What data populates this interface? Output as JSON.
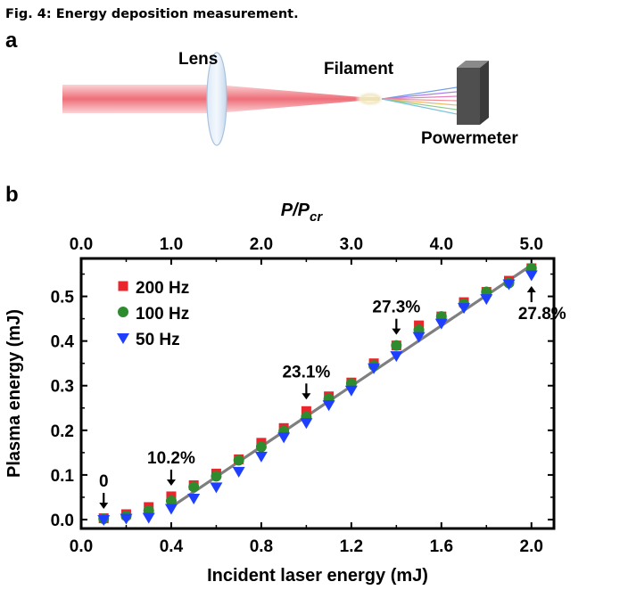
{
  "caption": "Fig. 4: Energy deposition measurement.",
  "panel_a": {
    "label": "a",
    "lens_label": "Lens",
    "filament_label": "Filament",
    "powermeter_label": "Powermeter"
  },
  "panel_b": {
    "label": "b"
  },
  "colors": {
    "series_200hz": "#e8262b",
    "series_100hz": "#2e8b2e",
    "series_50hz": "#1f3fff",
    "fit_line": "#7f7f7f",
    "beam": "#f07a82"
  },
  "chart_data": {
    "type": "scatter",
    "title": "",
    "xlabel": "Incident laser energy (mJ)",
    "ylabel": "Plasma energy (mJ)",
    "x2label_main": "P/P",
    "x2label_sub": "cr",
    "xlim": [
      0,
      2.1
    ],
    "ylim": [
      -0.02,
      0.585
    ],
    "x_ticks": [
      0.0,
      0.4,
      0.8,
      1.2,
      1.6,
      2.0
    ],
    "x_tick_labels": [
      "0.0",
      "0.4",
      "0.8",
      "1.2",
      "1.6",
      "2.0"
    ],
    "y_ticks": [
      0.0,
      0.1,
      0.2,
      0.3,
      0.4,
      0.5
    ],
    "y_tick_labels": [
      "0.0",
      "0.1",
      "0.2",
      "0.3",
      "0.4",
      "0.5"
    ],
    "x2_ticks": [
      0.0,
      1.0,
      2.0,
      3.0,
      4.0,
      5.0
    ],
    "x2_tick_labels": [
      "0.0",
      "1.0",
      "2.0",
      "3.0",
      "4.0",
      "5.0"
    ],
    "x2_scale": "P/Pcr = 2.5 × incident energy (mJ)",
    "legend_position": "top-left",
    "grid": false,
    "x": [
      0.1,
      0.2,
      0.3,
      0.4,
      0.5,
      0.6,
      0.7,
      0.8,
      0.9,
      1.0,
      1.1,
      1.2,
      1.3,
      1.4,
      1.5,
      1.6,
      1.7,
      1.8,
      1.9,
      2.0
    ],
    "series": [
      {
        "name": "200 Hz",
        "marker": "square",
        "values": [
          0.003,
          0.012,
          0.028,
          0.052,
          0.077,
          0.103,
          0.135,
          0.172,
          0.205,
          0.243,
          0.276,
          0.307,
          0.35,
          0.39,
          0.435,
          0.455,
          0.487,
          0.51,
          0.535,
          0.563
        ]
      },
      {
        "name": "100 Hz",
        "marker": "circle",
        "values": [
          0.002,
          0.008,
          0.02,
          0.042,
          0.073,
          0.097,
          0.133,
          0.163,
          0.198,
          0.23,
          0.27,
          0.305,
          0.345,
          0.39,
          0.425,
          0.455,
          0.483,
          0.51,
          0.53,
          0.563
        ]
      },
      {
        "name": "50 Hz",
        "marker": "triangle-down",
        "values": [
          0.0,
          0.003,
          0.005,
          0.025,
          0.048,
          0.073,
          0.108,
          0.142,
          0.185,
          0.217,
          0.257,
          0.29,
          0.34,
          0.367,
          0.41,
          0.44,
          0.475,
          0.495,
          0.528,
          0.548
        ]
      }
    ],
    "fit_line": {
      "x": [
        0.4,
        2.0
      ],
      "y": [
        0.028,
        0.57
      ]
    },
    "annotations": [
      {
        "text": "0",
        "x": 0.1,
        "y": 0.0,
        "arrow": "down"
      },
      {
        "text": "10.2%",
        "x": 0.4,
        "y": 0.052,
        "arrow": "down"
      },
      {
        "text": "23.1%",
        "x": 1.0,
        "y": 0.245,
        "arrow": "down"
      },
      {
        "text": "27.3%",
        "x": 1.4,
        "y": 0.39,
        "arrow": "down"
      },
      {
        "text": "27.8%",
        "x": 2.0,
        "y": 0.545,
        "arrow": "up"
      }
    ]
  }
}
